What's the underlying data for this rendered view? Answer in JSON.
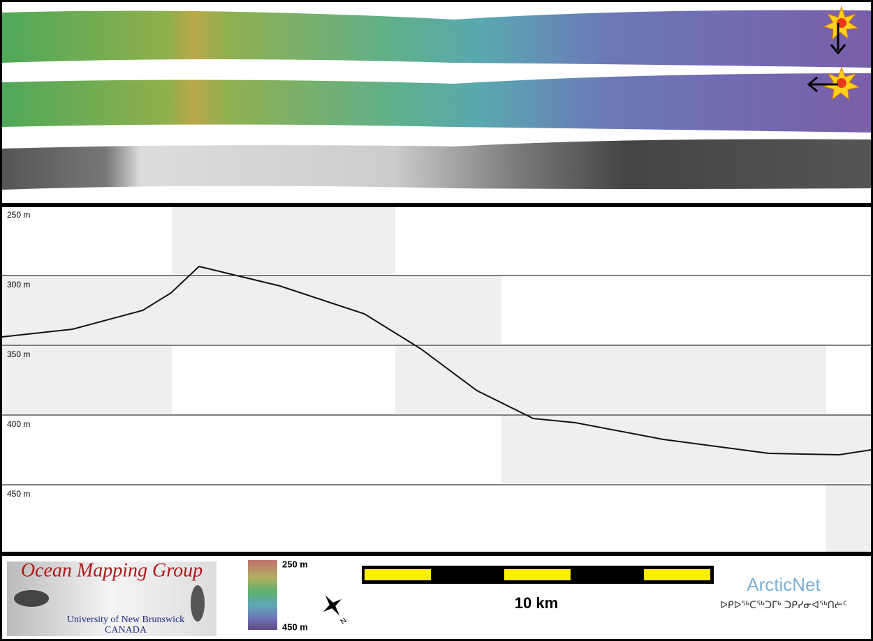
{
  "chart_data": {
    "type": "line",
    "ylim": [
      250,
      498
    ],
    "invert_y": true,
    "yticks": [
      {
        "value": 250,
        "label": "250 m"
      },
      {
        "value": 300,
        "label": "300 m"
      },
      {
        "value": 350,
        "label": "350 m"
      },
      {
        "value": 400,
        "label": "400 m"
      },
      {
        "value": 450,
        "label": "450 m"
      }
    ],
    "grid": true,
    "xlim": [
      0,
      24.7
    ],
    "series": [
      {
        "color": "#111111",
        "x": [
          0,
          2.0,
          4.0,
          4.8,
          5.6,
          7.9,
          10.3,
          11.9,
          13.5,
          15.1,
          16.3,
          18.8,
          21.8,
          23.8,
          24.7
        ],
        "values": [
          344,
          338.5,
          325,
          312.5,
          293.5,
          307.5,
          327.5,
          352.5,
          382.5,
          402.5,
          405.5,
          417.5,
          427.5,
          428.5,
          425
        ]
      }
    ]
  },
  "legend": {
    "colorbar_top": "250 m",
    "colorbar_bottom": "450 m",
    "scale": "10 km"
  },
  "logos": {
    "omg_title": "Ocean Mapping Group",
    "omg_university": "University of New Brunswick",
    "omg_country": "CANADA",
    "arcticnet": "ArcticNet",
    "arcticnet_inuktitut": "ᐅᑭᐅᖅᑕᖅᑐᒥᒃ ᑐᑭᓯᓂᐊᖅᑎᓖᑦ"
  }
}
